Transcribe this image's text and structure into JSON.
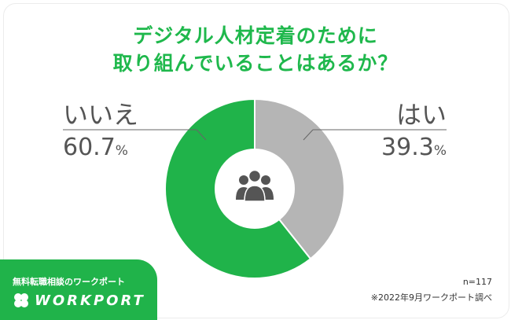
{
  "chart_data": {
    "type": "pie",
    "donut": true,
    "title_lines": [
      "デジタル人材定着のために",
      "取り組んでいることはあるか？"
    ],
    "slices": [
      {
        "label": "はい",
        "value": 39.3,
        "display": "39.3",
        "unit": "%",
        "color": "#b5b5b5"
      },
      {
        "label": "いいえ",
        "value": 60.7,
        "display": "60.7",
        "unit": "%",
        "color": "#20b34a"
      }
    ],
    "start": "top",
    "direction": "clockwise",
    "center_icon": "people-group-icon"
  },
  "footer": {
    "sample": "n=117",
    "source": "※2022年9月ワークポート調べ"
  },
  "brand": {
    "tagline": "無料転職相談のワークポート",
    "name": "WORKPORT",
    "logo_icon": "clover-icon",
    "color": "#20b34a"
  }
}
